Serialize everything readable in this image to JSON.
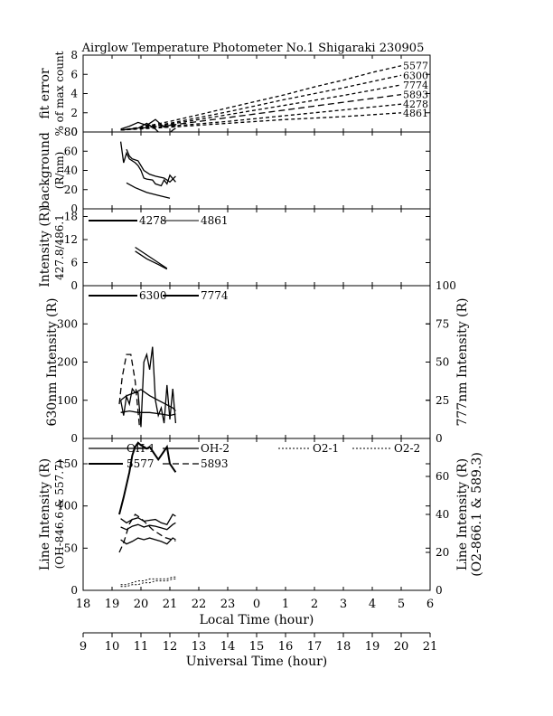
{
  "title": "Airglow Temperature Photometer No.1  Shigaraki  230905",
  "chart_data": [
    {
      "type": "line",
      "panel": "fit-error",
      "ylabel_lines": [
        "fit error",
        "% of max count"
      ],
      "ylim": [
        0,
        8
      ],
      "yticks": [
        "0",
        "2",
        "4",
        "6",
        "8"
      ],
      "series": [
        {
          "name": "5577",
          "dashed": true,
          "x": [
            19.3,
            20.0,
            21.0,
            22.0,
            23.0,
            24.0,
            25.0,
            26.0,
            27.0,
            28.0,
            29.0
          ],
          "y": [
            0.2,
            0.5,
            1.1,
            1.8,
            2.5,
            3.2,
            3.9,
            4.7,
            5.4,
            6.2,
            6.9
          ]
        },
        {
          "name": "6300",
          "dashed": true,
          "x": [
            19.3,
            21.0,
            23.0,
            25.0,
            27.0,
            29.0
          ],
          "y": [
            0.2,
            0.9,
            2.1,
            3.4,
            4.6,
            5.9
          ]
        },
        {
          "name": "7774",
          "dashed": true,
          "x": [
            19.3,
            21.0,
            23.0,
            25.0,
            27.0,
            29.0
          ],
          "y": [
            0.2,
            0.8,
            1.8,
            2.8,
            3.8,
            4.9
          ]
        },
        {
          "name": "5893",
          "dashed": true,
          "x": [
            19.3,
            21.0,
            23.0,
            25.0,
            27.0,
            29.0
          ],
          "y": [
            0.2,
            0.7,
            1.5,
            2.3,
            3.1,
            3.9
          ]
        },
        {
          "name": "4278",
          "dashed": true,
          "x": [
            19.3,
            21.0,
            23.0,
            25.0,
            27.0,
            29.0
          ],
          "y": [
            0.2,
            0.6,
            1.1,
            1.7,
            2.3,
            2.9
          ]
        },
        {
          "name": "4861",
          "dashed": true,
          "x": [
            19.3,
            21.0,
            23.0,
            25.0,
            27.0,
            29.0
          ],
          "y": [
            0.2,
            0.5,
            0.9,
            1.3,
            1.6,
            2.0
          ]
        },
        {
          "name": "",
          "dashed": false,
          "x": [
            19.3,
            19.6,
            19.9,
            20.2,
            20.5,
            20.8,
            21.1,
            21.2
          ],
          "y": [
            0.3,
            0.6,
            1.0,
            0.7,
            1.3,
            0.5,
            0.8,
            0.6
          ]
        },
        {
          "name": "",
          "dashed": false,
          "x": [
            19.3,
            19.6,
            19.9,
            20.2,
            20.5,
            20.8,
            21.1,
            21.2
          ],
          "y": [
            0.2,
            0.3,
            0.4,
            0.9,
            0.3,
            -0.6,
            0.2,
            0.4
          ]
        }
      ],
      "line_labels": [
        "5577",
        "6300",
        "7774",
        "5893",
        "4278",
        "4861"
      ]
    },
    {
      "type": "line",
      "panel": "background",
      "ylabel_lines": [
        "background",
        "(R/nm)"
      ],
      "ylim": [
        0,
        80
      ],
      "yticks": [
        "0",
        "20",
        "40",
        "60",
        "80"
      ],
      "series": [
        {
          "name": "",
          "x": [
            19.3,
            19.4,
            19.5,
            19.6,
            19.8,
            19.9,
            20.0,
            20.1,
            20.2,
            20.4,
            20.5,
            20.7,
            20.8,
            20.9,
            21.0,
            21.2
          ],
          "y": [
            70,
            48,
            58,
            52,
            48,
            45,
            40,
            32,
            31,
            30,
            26,
            24,
            30,
            26,
            35,
            28
          ]
        },
        {
          "name": "",
          "x": [
            19.5,
            19.6,
            19.7,
            19.9,
            20.1,
            20.3,
            20.5,
            20.8,
            21.0,
            21.2
          ],
          "y": [
            62,
            55,
            52,
            50,
            40,
            36,
            34,
            32,
            28,
            34
          ]
        },
        {
          "name": "",
          "x": [
            19.5,
            19.8,
            20.2,
            20.6,
            21.0
          ],
          "y": [
            27,
            22,
            17,
            14,
            11
          ]
        }
      ]
    },
    {
      "type": "line",
      "panel": "blue-lines",
      "ylabel_lines": [
        "Intensity (R)",
        "427.8/486.1"
      ],
      "ylim": [
        0,
        20
      ],
      "yticks": [
        "0",
        "6",
        "12",
        "18"
      ],
      "legend": [
        "4278",
        "4861"
      ],
      "series": [
        {
          "name": "4278",
          "x": [
            19.8,
            20.2,
            20.6,
            20.9
          ],
          "y": [
            10,
            8,
            6,
            4.5
          ]
        },
        {
          "name": "4861",
          "x": [
            19.8,
            20.2,
            20.6,
            20.9
          ],
          "y": [
            9,
            7,
            5.5,
            4.3
          ]
        }
      ]
    },
    {
      "type": "line",
      "panel": "red-lines",
      "ylabel_left": "630nm Intensity (R)",
      "ylabel_right": "777nm Intensity (R)",
      "ylim": [
        0,
        400
      ],
      "ylim_right": [
        0,
        100
      ],
      "yticks": [
        "0",
        "100",
        "200",
        "300"
      ],
      "yticks_right": [
        "0",
        "25",
        "50",
        "75",
        "100"
      ],
      "legend": [
        "6300",
        "7774"
      ],
      "series": [
        {
          "name": "6300",
          "x": [
            19.3,
            19.4,
            19.5,
            19.6,
            19.7,
            19.8,
            19.9,
            20.0,
            20.1,
            20.2,
            20.3,
            20.4,
            20.5,
            20.6,
            20.7,
            20.8,
            20.9,
            21.0,
            21.1,
            21.2
          ],
          "y": [
            100,
            60,
            110,
            90,
            130,
            120,
            120,
            30,
            200,
            220,
            180,
            240,
            100,
            60,
            80,
            40,
            140,
            50,
            130,
            40
          ]
        },
        {
          "name": "7774",
          "x": [
            19.3,
            19.5,
            19.8,
            20.0,
            20.3,
            20.6,
            20.9,
            21.1,
            21.2
          ],
          "y": [
            25,
            28,
            30,
            32,
            28,
            25,
            22,
            20,
            18
          ]
        },
        {
          "name": "",
          "x": [
            19.3,
            19.6,
            19.9,
            20.3,
            20.7,
            21.0,
            21.2
          ],
          "y": [
            17,
            18,
            17,
            17,
            16,
            15,
            16
          ]
        },
        {
          "name": "",
          "x": [
            19.25,
            19.35,
            19.5,
            19.65,
            19.8,
            19.95
          ],
          "y": [
            90,
            160,
            220,
            220,
            150,
            30
          ]
        }
      ]
    },
    {
      "type": "line",
      "panel": "line-intensity",
      "ylabel_left_lines": [
        "Line Intensity (R)",
        "(OH-846.6 & 557.7)"
      ],
      "ylabel_right_lines": [
        "Line Intensity (R)",
        "(O2-866.1 & 589.3)"
      ],
      "ylim": [
        0,
        180
      ],
      "ylim_right": [
        0,
        80
      ],
      "yticks": [
        "0",
        "50",
        "100",
        "150"
      ],
      "yticks_right": [
        "0",
        "20",
        "40",
        "60"
      ],
      "legend": [
        "OH-1",
        "OH-2",
        "O2-1",
        "O2-2",
        "5577",
        "5893"
      ],
      "series": [
        {
          "name": "5577",
          "x": [
            19.25,
            19.4,
            19.6,
            19.7,
            19.8,
            19.9,
            20.0,
            20.1,
            20.2,
            20.3,
            20.4,
            20.5,
            20.6,
            20.7,
            20.8,
            20.9,
            21.0,
            21.1,
            21.2
          ],
          "y": [
            90,
            110,
            140,
            160,
            170,
            175,
            172,
            170,
            168,
            170,
            165,
            160,
            155,
            160,
            165,
            170,
            150,
            145,
            140
          ]
        },
        {
          "name": "5893",
          "x": [
            19.25,
            19.4,
            19.6,
            19.8,
            20.0,
            20.2,
            20.4,
            20.6,
            20.8,
            21.0,
            21.2
          ],
          "y": [
            20,
            25,
            35,
            40,
            38,
            35,
            32,
            30,
            28,
            27,
            26
          ]
        },
        {
          "name": "OH-1",
          "x": [
            19.3,
            19.5,
            19.7,
            19.9,
            20.1,
            20.3,
            20.5,
            20.7,
            20.9,
            21.1,
            21.2
          ],
          "y": [
            60,
            55,
            58,
            62,
            60,
            62,
            60,
            58,
            55,
            62,
            60
          ]
        },
        {
          "name": "OH-2",
          "x": [
            19.3,
            19.5,
            19.7,
            19.9,
            20.1,
            20.3,
            20.5,
            20.7,
            20.9,
            21.1,
            21.2
          ],
          "y": [
            75,
            72,
            76,
            78,
            75,
            77,
            76,
            74,
            72,
            78,
            80
          ]
        },
        {
          "name": "O2-1",
          "x": [
            19.3,
            19.5,
            19.7,
            19.9,
            20.1,
            20.3,
            20.5,
            20.7,
            20.9,
            21.1,
            21.2
          ],
          "y": [
            3,
            3,
            4,
            5,
            5,
            6,
            6,
            6,
            6,
            7,
            7
          ]
        },
        {
          "name": "O2-2",
          "x": [
            19.3,
            19.5,
            19.7,
            19.9,
            20.1,
            20.3,
            20.5,
            20.7,
            20.9,
            21.1,
            21.2
          ],
          "y": [
            2,
            2,
            3,
            3,
            4,
            4,
            5,
            5,
            5,
            6,
            6
          ]
        },
        {
          "name": "",
          "x": [
            19.3,
            19.5,
            19.7,
            19.9,
            20.1,
            20.3,
            20.5,
            20.7,
            20.9,
            21.1,
            21.2
          ],
          "y": [
            85,
            80,
            84,
            86,
            82,
            83,
            84,
            80,
            78,
            90,
            88
          ]
        }
      ]
    }
  ],
  "x_axis": {
    "label": "Local Time (hour)",
    "ticks": [
      "18",
      "19",
      "20",
      "21",
      "22",
      "23",
      "0",
      "1",
      "2",
      "3",
      "4",
      "5",
      "6"
    ]
  },
  "x_axis_ut": {
    "label": "Universal Time (hour)",
    "ticks": [
      "9",
      "10",
      "11",
      "12",
      "13",
      "14",
      "15",
      "16",
      "17",
      "18",
      "19",
      "20",
      "21"
    ]
  }
}
